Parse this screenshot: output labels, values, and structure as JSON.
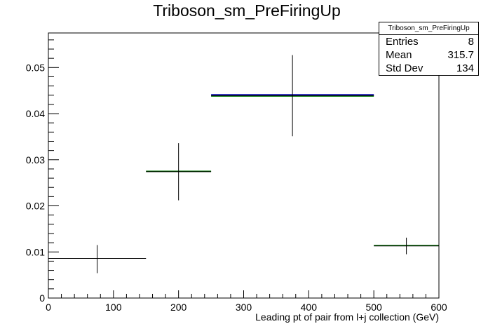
{
  "chart_data": {
    "type": "histogram",
    "title": "Triboson_sm_PreFiringUp",
    "xlabel": "Leading pt of pair from l+j collection (GeV)",
    "ylabel": "",
    "xlim": [
      0,
      600
    ],
    "ylim": [
      0,
      0.0575
    ],
    "x_ticks": [
      0,
      100,
      200,
      300,
      400,
      500,
      600
    ],
    "y_ticks": [
      0,
      0.01,
      0.02,
      0.03,
      0.04,
      0.05
    ],
    "x_tick_labels": [
      "0",
      "100",
      "200",
      "300",
      "400",
      "500",
      "600"
    ],
    "y_tick_labels": [
      "0",
      "0.01",
      "0.02",
      "0.03",
      "0.04",
      "0.05"
    ],
    "grid": false,
    "bins": [
      {
        "xlow": 0,
        "xhigh": 150,
        "x": 75,
        "y": 0.0086,
        "yerr_low": 0.0032,
        "yerr_high": 0.0029
      },
      {
        "xlow": 150,
        "xhigh": 250,
        "x": 200,
        "y": 0.0274,
        "yerr_low": 0.0062,
        "yerr_high": 0.0062
      },
      {
        "xlow": 250,
        "xhigh": 500,
        "x": 375,
        "y": 0.0439,
        "yerr_low": 0.0088,
        "yerr_high": 0.0088
      },
      {
        "xlow": 500,
        "xhigh": 600,
        "x": 550,
        "y": 0.0113,
        "yerr_low": 0.0018,
        "yerr_high": 0.0018
      }
    ],
    "variation_lines": [
      {
        "color": "#0000aa",
        "bins": [
          {
            "xlow": 250,
            "xhigh": 500,
            "y": 0.0441
          }
        ]
      },
      {
        "color": "#007700",
        "bins": [
          {
            "xlow": 150,
            "xhigh": 250,
            "y": 0.0275
          },
          {
            "xlow": 250,
            "xhigh": 500,
            "y": 0.0438
          },
          {
            "xlow": 500,
            "xhigh": 600,
            "y": 0.0114
          }
        ]
      }
    ]
  },
  "stats": {
    "title": "Triboson_sm_PreFiringUp",
    "rows": [
      {
        "label": "Entries",
        "value": "8"
      },
      {
        "label": "Mean",
        "value": "315.7"
      },
      {
        "label": "Std Dev",
        "value": "134"
      }
    ]
  }
}
